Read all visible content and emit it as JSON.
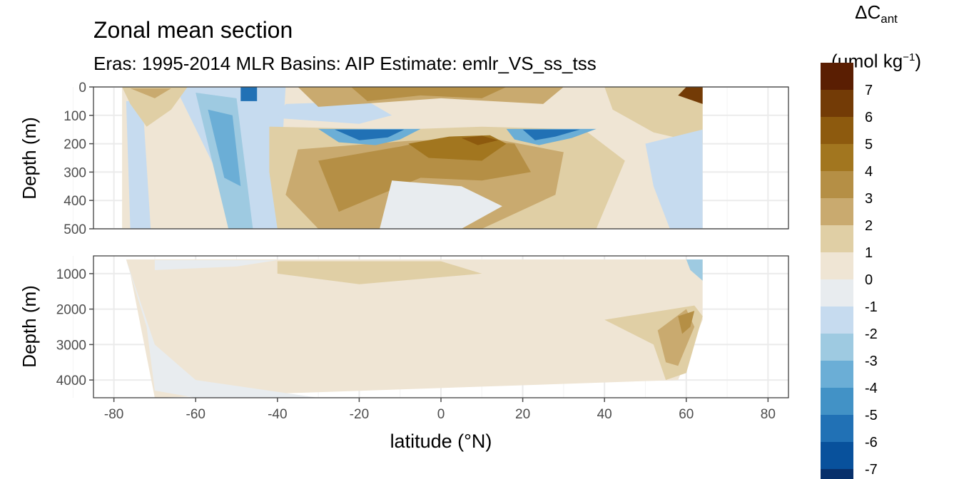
{
  "title": "Zonal mean section",
  "subtitle": "Eras: 1995-2014 MLR Basins: AIP Estimate: emlr_VS_ss_tss",
  "legend": {
    "title_symbol": "ΔC",
    "title_subscript": "ant",
    "unit_prefix": "(μmol kg",
    "unit_superscript": "−1",
    "unit_suffix": ")"
  },
  "colors": {
    "palette": [
      "#08306b",
      "#08519c",
      "#2171b5",
      "#4292c6",
      "#6baed6",
      "#9ecae1",
      "#c6dbef",
      "#e8ecef",
      "#efe5d4",
      "#e0cfa5",
      "#c9aa6f",
      "#b58f45",
      "#a2761f",
      "#8d5a0e",
      "#733b06",
      "#5a1e02"
    ],
    "panel_border": "#333333",
    "grid": "#ebebeb",
    "axis_text": "#4d4d4d"
  },
  "chart_data": {
    "type": "heatmap",
    "xlabel": "latitude (°N)",
    "ylabel": "Depth (m)",
    "xlim": [
      -85,
      85
    ],
    "x_ticks": [
      "-80",
      "-60",
      "-40",
      "-20",
      "0",
      "20",
      "40",
      "60",
      "80"
    ],
    "x_tick_values": [
      -80,
      -60,
      -40,
      -20,
      0,
      20,
      40,
      60,
      80
    ],
    "panels": [
      {
        "name": "upper",
        "ylim": [
          0,
          500
        ],
        "y_ticks": [
          "0",
          "100",
          "200",
          "300",
          "400",
          "500"
        ],
        "y_tick_values": [
          0,
          100,
          200,
          300,
          400,
          500
        ]
      },
      {
        "name": "lower",
        "ylim": [
          500,
          4500
        ],
        "y_ticks": [
          "1000",
          "2000",
          "3000",
          "4000"
        ],
        "y_tick_values": [
          1000,
          2000,
          3000,
          4000
        ]
      }
    ],
    "colorbar": {
      "breaks": [
        -8,
        -7,
        -6,
        -5,
        -4,
        -3,
        -2,
        -1,
        0,
        1,
        2,
        3,
        4,
        5,
        6,
        7,
        8
      ],
      "labels": [
        "-7",
        "-6",
        "-5",
        "-4",
        "-3",
        "-2",
        "-1",
        "0",
        "1",
        "2",
        "3",
        "4",
        "5",
        "6",
        "7"
      ],
      "label_values": [
        -7,
        -6,
        -5,
        -4,
        -3,
        -2,
        -1,
        0,
        1,
        2,
        3,
        4,
        5,
        6,
        7
      ]
    },
    "regions": [
      {
        "panel": "upper",
        "value": 0.5,
        "polygon": [
          [
            -78,
            0
          ],
          [
            64,
            0
          ],
          [
            64,
            500
          ],
          [
            -78,
            500
          ]
        ]
      },
      {
        "panel": "upper",
        "value": -1.5,
        "polygon": [
          [
            -77,
            50
          ],
          [
            -73,
            50
          ],
          [
            -71,
            500
          ],
          [
            -76,
            500
          ]
        ]
      },
      {
        "panel": "upper",
        "value": -1.5,
        "polygon": [
          [
            -65,
            0
          ],
          [
            -38,
            0
          ],
          [
            -40,
            500
          ],
          [
            -48,
            500
          ]
        ]
      },
      {
        "panel": "upper",
        "value": -2.5,
        "polygon": [
          [
            -60,
            20
          ],
          [
            -50,
            40
          ],
          [
            -46,
            500
          ],
          [
            -52,
            500
          ]
        ]
      },
      {
        "panel": "upper",
        "value": -3.5,
        "polygon": [
          [
            -57,
            80
          ],
          [
            -51,
            100
          ],
          [
            -49,
            350
          ],
          [
            -53,
            320
          ]
        ]
      },
      {
        "panel": "upper",
        "value": -5.5,
        "polygon": [
          [
            -49,
            0
          ],
          [
            -45,
            0
          ],
          [
            -45,
            50
          ],
          [
            -49,
            50
          ]
        ]
      },
      {
        "panel": "upper",
        "value": -1.5,
        "polygon": [
          [
            -38,
            60
          ],
          [
            -18,
            50
          ],
          [
            -12,
            100
          ],
          [
            -20,
            130
          ],
          [
            -40,
            110
          ]
        ]
      },
      {
        "panel": "upper",
        "value": 1.5,
        "polygon": [
          [
            -42,
            140
          ],
          [
            -10,
            150
          ],
          [
            10,
            140
          ],
          [
            35,
            150
          ],
          [
            45,
            260
          ],
          [
            38,
            500
          ],
          [
            -40,
            500
          ],
          [
            -42,
            300
          ]
        ]
      },
      {
        "panel": "upper",
        "value": 2.5,
        "polygon": [
          [
            -35,
            220
          ],
          [
            -8,
            190
          ],
          [
            12,
            180
          ],
          [
            30,
            230
          ],
          [
            28,
            380
          ],
          [
            10,
            500
          ],
          [
            -30,
            500
          ],
          [
            -38,
            380
          ]
        ]
      },
      {
        "panel": "upper",
        "value": 3.5,
        "polygon": [
          [
            -30,
            260
          ],
          [
            -10,
            210
          ],
          [
            0,
            180
          ],
          [
            18,
            200
          ],
          [
            22,
            300
          ],
          [
            10,
            330
          ],
          [
            -5,
            320
          ],
          [
            -25,
            440
          ]
        ]
      },
      {
        "panel": "upper",
        "value": 4.5,
        "polygon": [
          [
            -8,
            200
          ],
          [
            2,
            175
          ],
          [
            12,
            170
          ],
          [
            16,
            200
          ],
          [
            10,
            260
          ],
          [
            -3,
            250
          ]
        ]
      },
      {
        "panel": "upper",
        "value": 5.5,
        "polygon": [
          [
            5,
            180
          ],
          [
            10,
            172
          ],
          [
            14,
            188
          ],
          [
            9,
            205
          ]
        ]
      },
      {
        "panel": "upper",
        "value": -3.5,
        "polygon": [
          [
            -30,
            148
          ],
          [
            -5,
            148
          ],
          [
            -10,
            185
          ],
          [
            -16,
            205
          ],
          [
            -25,
            195
          ]
        ]
      },
      {
        "panel": "upper",
        "value": -5.5,
        "polygon": [
          [
            -26,
            150
          ],
          [
            -9,
            150
          ],
          [
            -13,
            178
          ],
          [
            -20,
            188
          ]
        ]
      },
      {
        "panel": "upper",
        "value": -3.5,
        "polygon": [
          [
            16,
            148
          ],
          [
            38,
            148
          ],
          [
            32,
            180
          ],
          [
            24,
            205
          ],
          [
            18,
            185
          ]
        ]
      },
      {
        "panel": "upper",
        "value": -5.5,
        "polygon": [
          [
            20,
            150
          ],
          [
            34,
            150
          ],
          [
            28,
            175
          ],
          [
            23,
            188
          ]
        ]
      },
      {
        "panel": "upper",
        "value": 2.5,
        "polygon": [
          [
            -35,
            0
          ],
          [
            30,
            0
          ],
          [
            25,
            60
          ],
          [
            0,
            40
          ],
          [
            -30,
            70
          ]
        ]
      },
      {
        "panel": "upper",
        "value": 3.5,
        "polygon": [
          [
            -22,
            0
          ],
          [
            16,
            0
          ],
          [
            10,
            40
          ],
          [
            -5,
            30
          ],
          [
            -18,
            50
          ]
        ]
      },
      {
        "panel": "upper",
        "value": 1.5,
        "polygon": [
          [
            -78,
            0
          ],
          [
            -62,
            0
          ],
          [
            -66,
            80
          ],
          [
            -72,
            140
          ],
          [
            -76,
            60
          ]
        ]
      },
      {
        "panel": "upper",
        "value": 2.5,
        "polygon": [
          [
            -76,
            5
          ],
          [
            -66,
            5
          ],
          [
            -70,
            40
          ]
        ]
      },
      {
        "panel": "upper",
        "value": 1.5,
        "polygon": [
          [
            40,
            0
          ],
          [
            64,
            0
          ],
          [
            64,
            200
          ],
          [
            52,
            160
          ],
          [
            42,
            80
          ]
        ]
      },
      {
        "panel": "upper",
        "value": 6.5,
        "polygon": [
          [
            60,
            0
          ],
          [
            64,
            0
          ],
          [
            64,
            60
          ],
          [
            58,
            30
          ]
        ]
      },
      {
        "panel": "upper",
        "value": -1.5,
        "polygon": [
          [
            50,
            200
          ],
          [
            64,
            150
          ],
          [
            64,
            500
          ],
          [
            56,
            500
          ],
          [
            52,
            350
          ]
        ]
      },
      {
        "panel": "upper",
        "value": -0.5,
        "polygon": [
          [
            -12,
            330
          ],
          [
            5,
            350
          ],
          [
            15,
            420
          ],
          [
            5,
            500
          ],
          [
            -15,
            500
          ]
        ]
      },
      {
        "panel": "lower",
        "value": 0.5,
        "polygon": [
          [
            -77,
            600
          ],
          [
            64,
            600
          ],
          [
            64,
            2300
          ],
          [
            58,
            4000
          ],
          [
            -70,
            4500
          ],
          [
            -76,
            1000
          ]
        ]
      },
      {
        "panel": "lower",
        "value": -0.5,
        "polygon": [
          [
            -77,
            600
          ],
          [
            -76,
            1000
          ],
          [
            -72,
            2500
          ],
          [
            -70,
            4300
          ],
          [
            -60,
            4500
          ],
          [
            -30,
            4500
          ],
          [
            -60,
            4000
          ],
          [
            -70,
            3000
          ]
        ]
      },
      {
        "panel": "lower",
        "value": -0.5,
        "polygon": [
          [
            -70,
            620
          ],
          [
            -40,
            620
          ],
          [
            -50,
            800
          ],
          [
            -70,
            900
          ]
        ]
      },
      {
        "panel": "lower",
        "value": 1.5,
        "polygon": [
          [
            -40,
            650
          ],
          [
            0,
            650
          ],
          [
            10,
            1000
          ],
          [
            -20,
            1300
          ],
          [
            -40,
            1000
          ]
        ]
      },
      {
        "panel": "lower",
        "value": 1.5,
        "polygon": [
          [
            40,
            2300
          ],
          [
            62,
            1900
          ],
          [
            64,
            2200
          ],
          [
            60,
            3800
          ],
          [
            55,
            4000
          ],
          [
            52,
            3000
          ]
        ]
      },
      {
        "panel": "lower",
        "value": 2.5,
        "polygon": [
          [
            53,
            2600
          ],
          [
            60,
            2000
          ],
          [
            62,
            2500
          ],
          [
            58,
            3600
          ],
          [
            55,
            3500
          ]
        ]
      },
      {
        "panel": "lower",
        "value": 3.5,
        "polygon": [
          [
            58,
            2200
          ],
          [
            62,
            2050
          ],
          [
            61,
            2500
          ],
          [
            59,
            2700
          ]
        ]
      },
      {
        "panel": "lower",
        "value": -2.5,
        "polygon": [
          [
            60,
            600
          ],
          [
            64,
            600
          ],
          [
            64,
            1200
          ],
          [
            61,
            900
          ]
        ]
      }
    ]
  }
}
